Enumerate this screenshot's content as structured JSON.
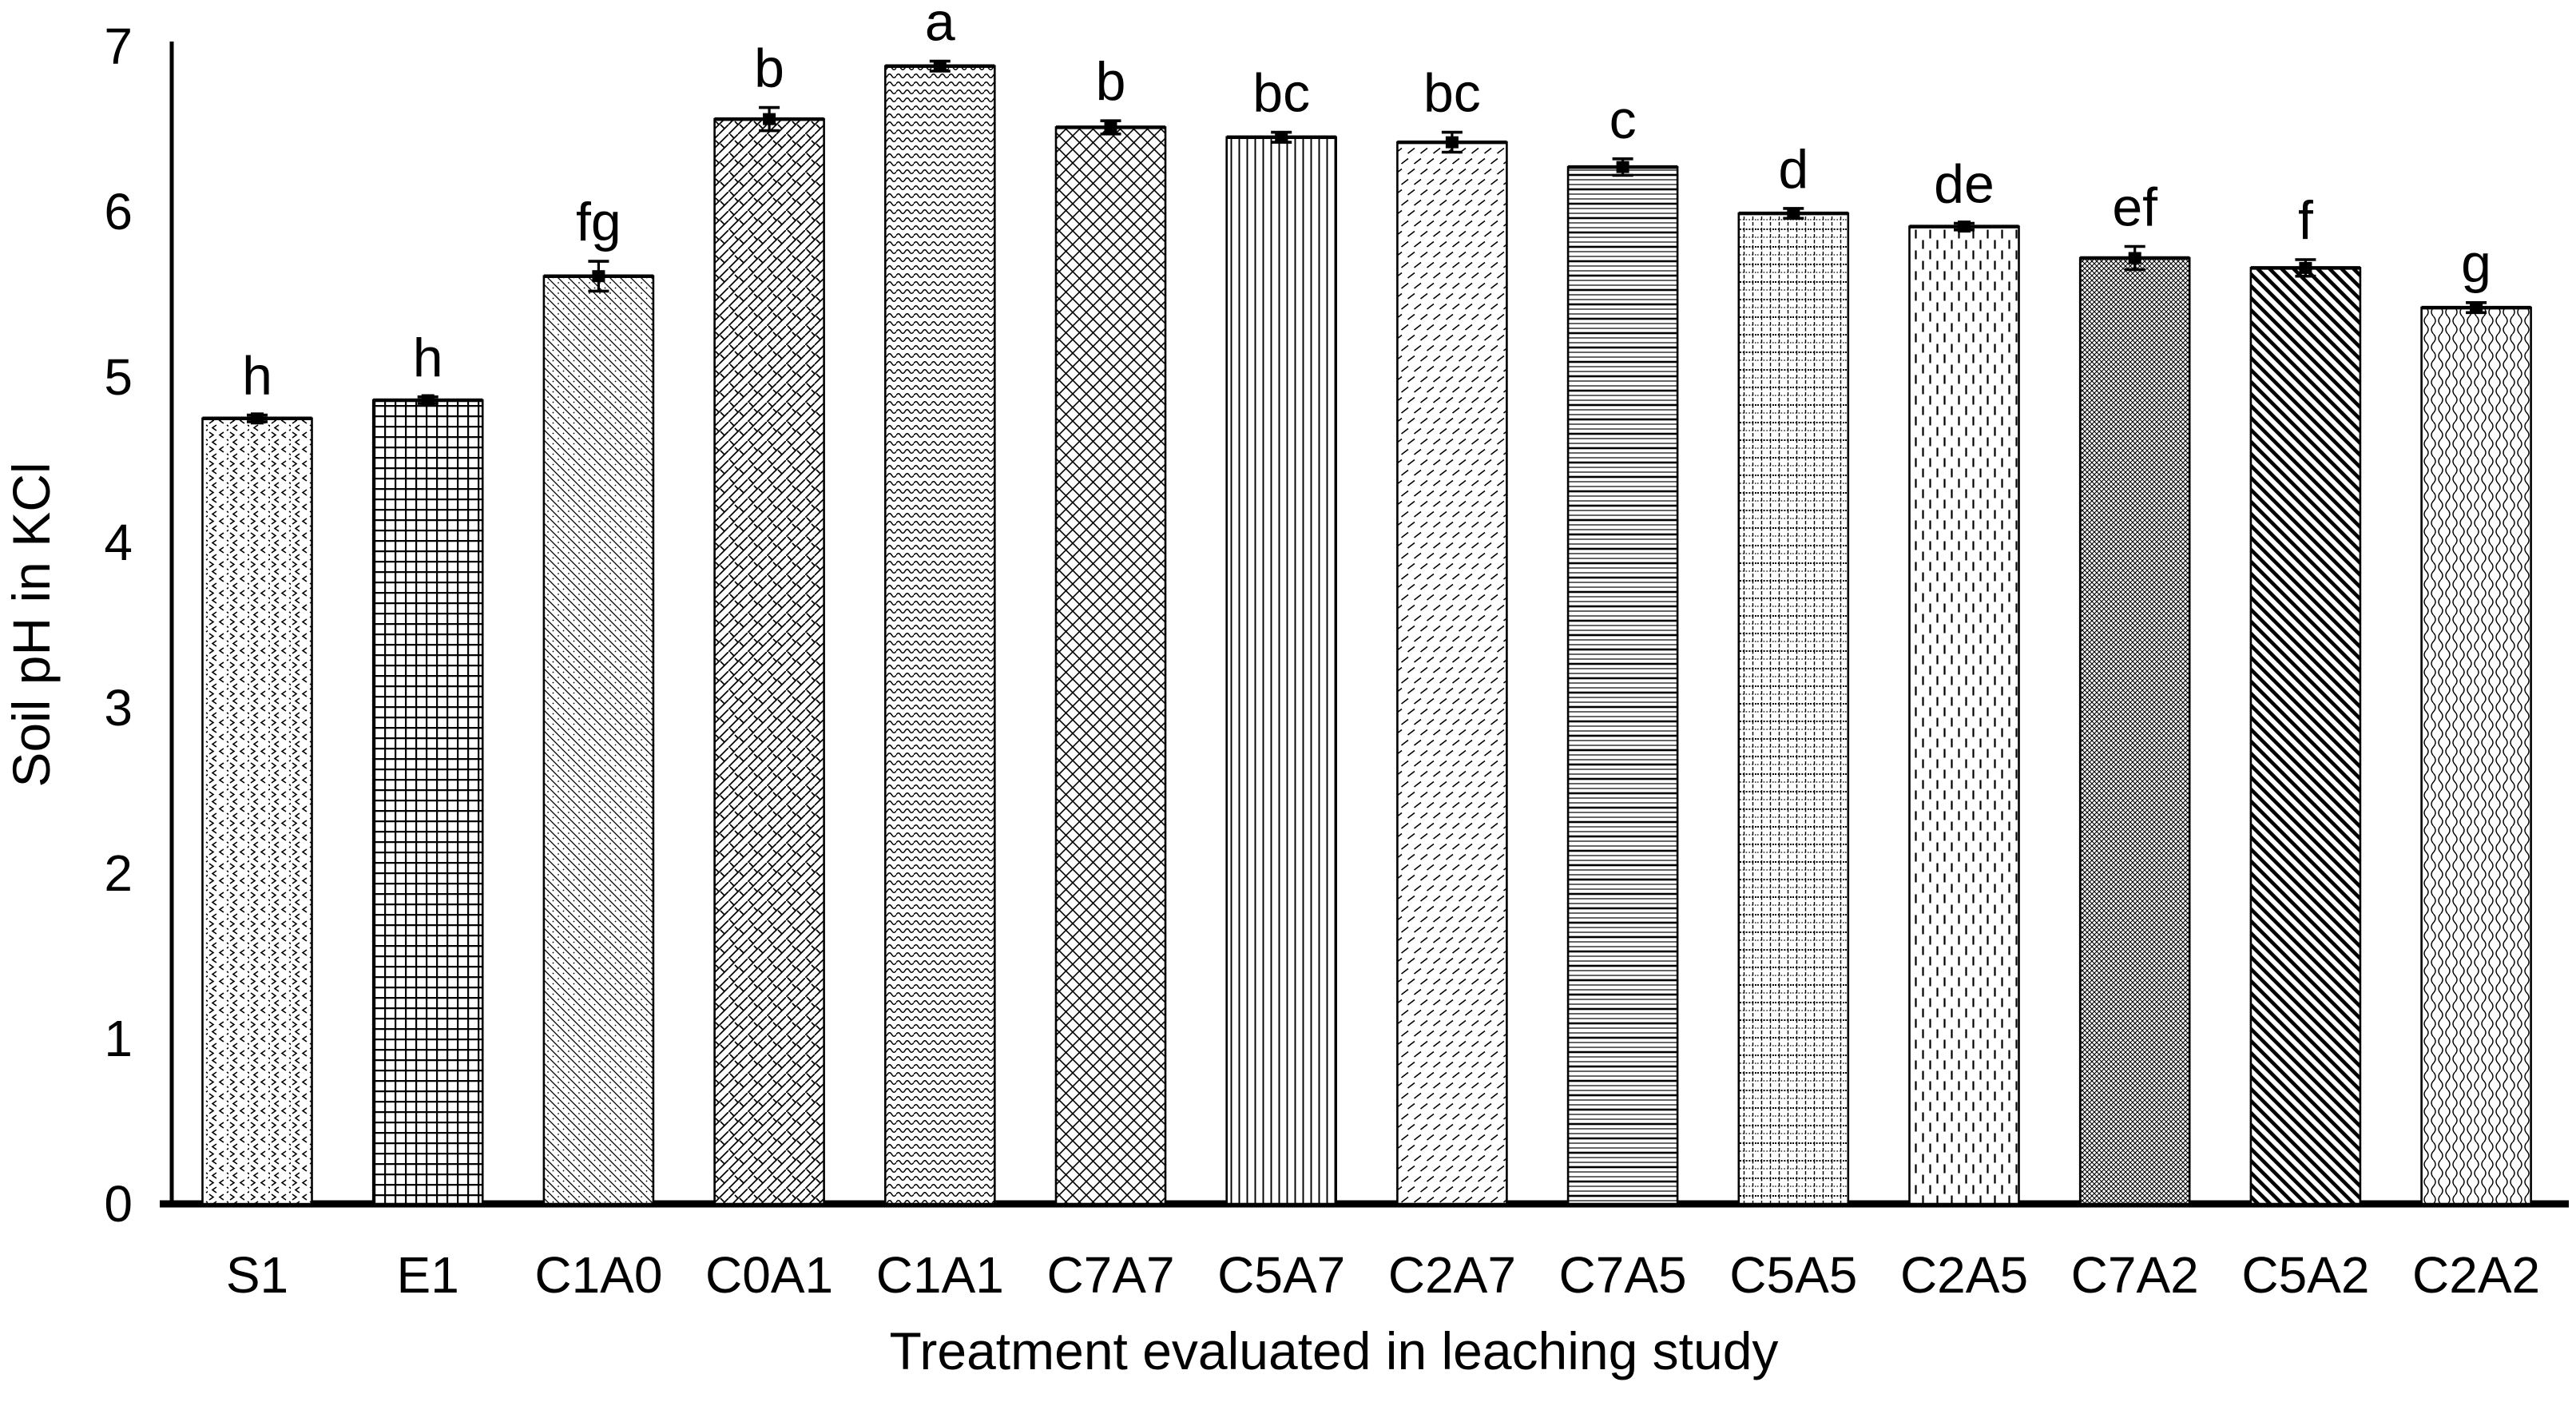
{
  "chart_data": {
    "type": "bar",
    "title": "",
    "xlabel": "Treatment evaluated in leaching study",
    "ylabel": "Soil pH in KCl",
    "ylim": [
      0,
      7
    ],
    "ytick_labels": [
      "0",
      "1",
      "2",
      "3",
      "4",
      "5",
      "6",
      "7"
    ],
    "grid": false,
    "legend": false,
    "categories": [
      "S1",
      "E1",
      "C1A0",
      "C0A1",
      "C1A1",
      "C7A7",
      "C5A7",
      "C2A7",
      "C7A5",
      "C5A5",
      "C2A5",
      "C7A2",
      "C5A2",
      "C2A2"
    ],
    "values": [
      4.75,
      4.86,
      5.61,
      6.56,
      6.88,
      6.51,
      6.45,
      6.42,
      6.27,
      5.99,
      5.91,
      5.72,
      5.66,
      5.42
    ],
    "error_bars": [
      0.02,
      0.02,
      0.09,
      0.07,
      0.03,
      0.04,
      0.03,
      0.06,
      0.05,
      0.03,
      0.02,
      0.07,
      0.05,
      0.03
    ],
    "sig_letters": [
      "h",
      "h",
      "fg",
      "b",
      "a",
      "b",
      "bc",
      "bc",
      "c",
      "d",
      "de",
      "ef",
      "f",
      "g"
    ],
    "bar_patterns": [
      "chevron-stipple",
      "small-grid",
      "thin-diagonal-dotted",
      "diagonal-brick",
      "horizontal-waves",
      "diamond-crosshatch",
      "vertical-lines",
      "diagonal-dash-rows",
      "horizontal-lines",
      "dashed-grid",
      "vertical-dashes",
      "dense-weave",
      "thick-diagonal",
      "vertical-waves"
    ],
    "colors": {
      "ink": "#000000",
      "background": "#ffffff"
    }
  }
}
